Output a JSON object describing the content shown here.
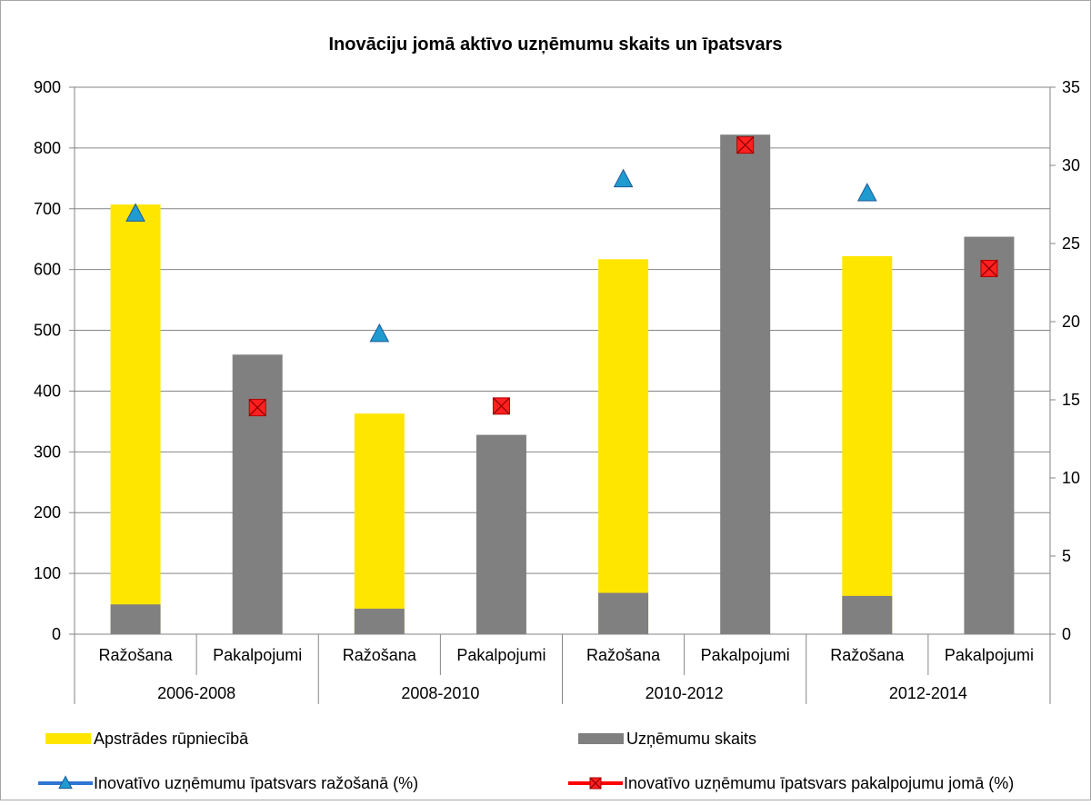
{
  "chart_data": {
    "type": "bar",
    "title": "Inovāciju jomā aktīvo uzņēmumu skaits un īpatsvars",
    "groups": [
      "2006-2008",
      "2008-2010",
      "2010-2012",
      "2012-2014"
    ],
    "categories": [
      "Ražošana",
      "Pakalpojumi",
      "Ražošana",
      "Pakalpojumi",
      "Ražošana",
      "Pakalpojumi",
      "Ražošana",
      "Pakalpojumi"
    ],
    "bars": {
      "apstrade": [
        707,
        null,
        363,
        null,
        617,
        null,
        622,
        null
      ],
      "skaits": [
        49,
        460,
        42,
        328,
        68,
        822,
        63,
        654
      ]
    },
    "series": [
      {
        "name": "Apstrādes rūpniecībā",
        "type": "bar",
        "color": "#FFE600",
        "axis": "left"
      },
      {
        "name": "Uzņēmumu skaits",
        "type": "bar",
        "color": "#808080",
        "axis": "left"
      },
      {
        "name": "Inovatīvo uzņēmumu īpatsvars ražošanā (%)",
        "type": "marker",
        "marker": "triangle",
        "color": "#1F9BD0",
        "axis": "right",
        "values": [
          26.9,
          null,
          19.2,
          null,
          29.1,
          null,
          28.2,
          null
        ]
      },
      {
        "name": "Inovatīvo uzņēmumu īpatsvars pakalpojumu jomā (%)",
        "type": "marker",
        "marker": "x-square",
        "color": "#FF2020",
        "axis": "right",
        "values": [
          null,
          14.5,
          null,
          14.6,
          null,
          31.3,
          null,
          23.4
        ]
      }
    ],
    "y_left": {
      "min": 0,
      "max": 900,
      "step": 100,
      "ticks": [
        "0",
        "100",
        "200",
        "300",
        "400",
        "500",
        "600",
        "700",
        "800",
        "900"
      ]
    },
    "y_right": {
      "min": 0,
      "max": 35,
      "step": 5,
      "ticks": [
        "0",
        "5",
        "10",
        "15",
        "20",
        "25",
        "30",
        "35"
      ]
    },
    "grid": true,
    "legend_position": "bottom"
  }
}
